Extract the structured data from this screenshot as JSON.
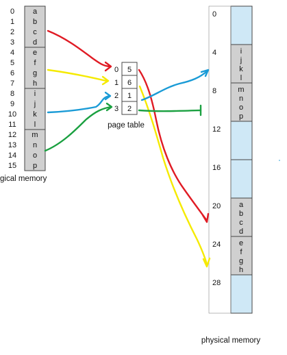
{
  "logical_memory": {
    "page_numbers": [
      "0",
      "1",
      "2",
      "3",
      "4",
      "5",
      "6",
      "7",
      "8",
      "9",
      "10",
      "11",
      "12",
      "13",
      "14",
      "15"
    ],
    "letters": [
      "a",
      "b",
      "c",
      "d",
      "e",
      "f",
      "g",
      "h",
      "i",
      "j",
      "k",
      "l",
      "m",
      "n",
      "o",
      "p"
    ],
    "caption": "logical memory",
    "caption_visible": "gical memory"
  },
  "page_table": {
    "indices": [
      "0",
      "1",
      "2",
      "3"
    ],
    "frames": [
      "5",
      "6",
      "1",
      "2"
    ],
    "caption": "page table"
  },
  "physical_memory": {
    "addresses": [
      "0",
      "4",
      "8",
      "12",
      "16",
      "20",
      "24",
      "28"
    ],
    "frames": [
      {
        "letters": []
      },
      {
        "letters": [
          "i",
          "j",
          "k",
          "l"
        ]
      },
      {
        "letters": [
          "m",
          "n",
          "o",
          "p"
        ]
      },
      {
        "letters": []
      },
      {
        "letters": []
      },
      {
        "letters": [
          "a",
          "b",
          "c",
          "d"
        ]
      },
      {
        "letters": [
          "e",
          "f",
          "g",
          "h"
        ]
      },
      {
        "letters": []
      }
    ],
    "caption": "physical memory"
  },
  "colors": {
    "red": "#e01b24",
    "yellow": "#f5ea00",
    "blue": "#1a9bd6",
    "green": "#1aa040",
    "logical_fill": "#d0d0d0",
    "physical_fill": "#cfe8f6",
    "used_fill": "#d0d0d0"
  }
}
